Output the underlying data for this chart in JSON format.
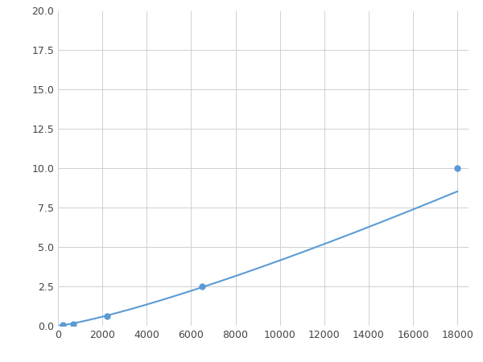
{
  "x_data": [
    200,
    700,
    2200,
    6500,
    18000
  ],
  "y_data": [
    0.05,
    0.1,
    0.6,
    2.5,
    10.0
  ],
  "line_color": "#5b9bd5",
  "marker_color": "#5b9bd5",
  "marker_size": 5,
  "xlim": [
    0,
    18500
  ],
  "ylim": [
    0,
    20.0
  ],
  "xticks": [
    0,
    2000,
    4000,
    6000,
    8000,
    10000,
    12000,
    14000,
    16000,
    18000
  ],
  "yticks": [
    0.0,
    2.5,
    5.0,
    7.5,
    10.0,
    12.5,
    15.0,
    17.5,
    20.0
  ],
  "grid_color": "#d0d0d0",
  "background_color": "#ffffff",
  "figsize": [
    6.0,
    4.5
  ],
  "dpi": 100,
  "power_a": 3.5e-07,
  "power_b": 1.7
}
